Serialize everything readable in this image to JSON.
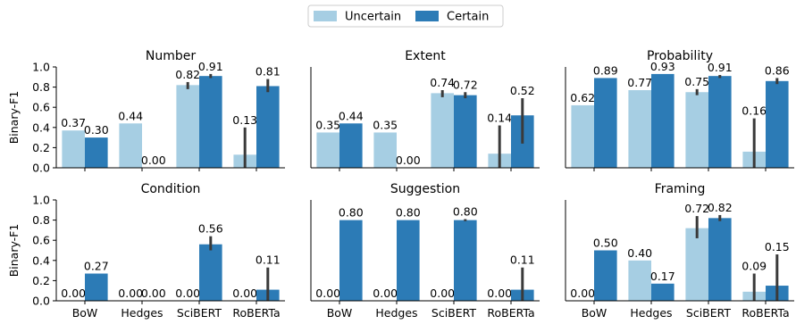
{
  "legend": {
    "items": [
      {
        "label": "Uncertain",
        "color": "#a6cee3"
      },
      {
        "label": "Certain",
        "color": "#2c7bb6"
      }
    ],
    "placement": "top-center"
  },
  "colors": {
    "uncertain": "#a6cee3",
    "certain": "#2c7bb6",
    "error_bar": "#3a3a3a"
  },
  "chart_data": [
    {
      "type": "bar",
      "title": "Number",
      "ylabel": "Binary-F1",
      "xlabel": "",
      "ylim": [
        0,
        1.0
      ],
      "yticks": [
        "0.0",
        "0.2",
        "0.4",
        "0.6",
        "0.8",
        "1.0"
      ],
      "categories": [
        "BoW",
        "Hedges",
        "SciBERT",
        "RoBERTa"
      ],
      "series": [
        {
          "name": "Uncertain",
          "values": [
            0.37,
            0.44,
            0.82,
            0.13
          ],
          "labels": [
            "0.37",
            "0.44",
            "0.82",
            "0.13"
          ],
          "err_low": [
            null,
            null,
            0.78,
            0.0
          ],
          "err_high": [
            null,
            null,
            0.85,
            0.4
          ]
        },
        {
          "name": "Certain",
          "values": [
            0.3,
            0.0,
            0.91,
            0.81
          ],
          "labels": [
            "0.30",
            "0.00",
            "0.91",
            "0.81"
          ],
          "err_low": [
            null,
            null,
            0.89,
            0.75
          ],
          "err_high": [
            null,
            null,
            0.93,
            0.88
          ]
        }
      ]
    },
    {
      "type": "bar",
      "title": "Extent",
      "ylabel": "",
      "xlabel": "",
      "ylim": [
        0,
        1.0
      ],
      "yticks": [],
      "categories": [
        "BoW",
        "Hedges",
        "SciBERT",
        "RoBERTa"
      ],
      "series": [
        {
          "name": "Uncertain",
          "values": [
            0.35,
            0.35,
            0.74,
            0.14
          ],
          "labels": [
            "0.35",
            "0.35",
            "0.74",
            "0.14"
          ],
          "err_low": [
            null,
            null,
            0.7,
            0.0
          ],
          "err_high": [
            null,
            null,
            0.77,
            0.42
          ]
        },
        {
          "name": "Certain",
          "values": [
            0.44,
            0.0,
            0.72,
            0.52
          ],
          "labels": [
            "0.44",
            "0.00",
            "0.72",
            "0.52"
          ],
          "err_low": [
            null,
            null,
            0.69,
            0.24
          ],
          "err_high": [
            null,
            null,
            0.75,
            0.69
          ]
        }
      ]
    },
    {
      "type": "bar",
      "title": "Probability",
      "ylabel": "",
      "xlabel": "",
      "ylim": [
        0,
        1.0
      ],
      "yticks": [],
      "categories": [
        "BoW",
        "Hedges",
        "SciBERT",
        "RoBERTa"
      ],
      "series": [
        {
          "name": "Uncertain",
          "values": [
            0.62,
            0.77,
            0.75,
            0.16
          ],
          "labels": [
            "0.62",
            "0.77",
            "0.75",
            "0.16"
          ],
          "err_low": [
            null,
            null,
            0.72,
            0.0
          ],
          "err_high": [
            null,
            null,
            0.78,
            0.49
          ]
        },
        {
          "name": "Certain",
          "values": [
            0.89,
            0.93,
            0.91,
            0.86
          ],
          "labels": [
            "0.89",
            "0.93",
            "0.91",
            "0.86"
          ],
          "err_low": [
            null,
            null,
            0.89,
            0.83
          ],
          "err_high": [
            null,
            null,
            0.92,
            0.89
          ]
        }
      ]
    },
    {
      "type": "bar",
      "title": "Condition",
      "ylabel": "Binary-F1",
      "xlabel": "",
      "ylim": [
        0,
        1.0
      ],
      "yticks": [
        "0.0",
        "0.2",
        "0.4",
        "0.6",
        "0.8",
        "1.0"
      ],
      "categories": [
        "BoW",
        "Hedges",
        "SciBERT",
        "RoBERTa"
      ],
      "series": [
        {
          "name": "Uncertain",
          "values": [
            0.0,
            0.0,
            0.0,
            0.0
          ],
          "labels": [
            "0.00",
            "0.00",
            "0.00",
            "0.00"
          ],
          "err_low": [
            null,
            null,
            null,
            null
          ],
          "err_high": [
            null,
            null,
            null,
            null
          ]
        },
        {
          "name": "Certain",
          "values": [
            0.27,
            0.0,
            0.56,
            0.11
          ],
          "labels": [
            "0.27",
            "0.00",
            "0.56",
            "0.11"
          ],
          "err_low": [
            null,
            null,
            0.5,
            0.0
          ],
          "err_high": [
            null,
            null,
            0.64,
            0.33
          ]
        }
      ]
    },
    {
      "type": "bar",
      "title": "Suggestion",
      "ylabel": "",
      "xlabel": "",
      "ylim": [
        0,
        1.0
      ],
      "yticks": [],
      "categories": [
        "BoW",
        "Hedges",
        "SciBERT",
        "RoBERTa"
      ],
      "series": [
        {
          "name": "Uncertain",
          "values": [
            0.0,
            0.0,
            0.0,
            0.0
          ],
          "labels": [
            "0.00",
            "0.00",
            "0.00",
            "0.00"
          ],
          "err_low": [
            null,
            null,
            null,
            null
          ],
          "err_high": [
            null,
            null,
            null,
            null
          ]
        },
        {
          "name": "Certain",
          "values": [
            0.8,
            0.8,
            0.8,
            0.11
          ],
          "labels": [
            "0.80",
            "0.80",
            "0.80",
            "0.11"
          ],
          "err_low": [
            null,
            null,
            0.79,
            0.0
          ],
          "err_high": [
            null,
            null,
            0.81,
            0.33
          ]
        }
      ]
    },
    {
      "type": "bar",
      "title": "Framing",
      "ylabel": "",
      "xlabel": "",
      "ylim": [
        0,
        1.0
      ],
      "yticks": [],
      "categories": [
        "BoW",
        "Hedges",
        "SciBERT",
        "RoBERTa"
      ],
      "series": [
        {
          "name": "Uncertain",
          "values": [
            0.0,
            0.4,
            0.72,
            0.09
          ],
          "labels": [
            "0.00",
            "0.40",
            "0.72",
            "0.09"
          ],
          "err_low": [
            null,
            null,
            0.62,
            0.0
          ],
          "err_high": [
            null,
            null,
            0.84,
            0.27
          ]
        },
        {
          "name": "Certain",
          "values": [
            0.5,
            0.17,
            0.82,
            0.15
          ],
          "labels": [
            "0.50",
            "0.17",
            "0.82",
            "0.15"
          ],
          "err_low": [
            null,
            null,
            0.79,
            0.0
          ],
          "err_high": [
            null,
            null,
            0.85,
            0.46
          ]
        }
      ]
    }
  ]
}
